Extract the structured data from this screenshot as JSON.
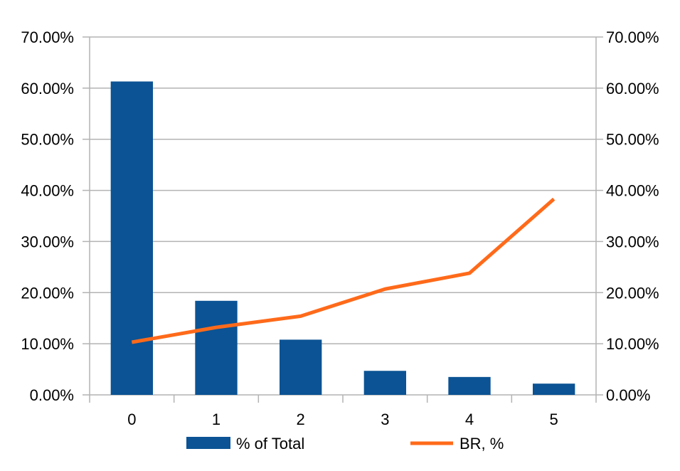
{
  "chart_data": {
    "type": "bar",
    "title": "",
    "xlabel": "",
    "ylabel": "",
    "categories": [
      "0",
      "1",
      "2",
      "3",
      "4",
      "5"
    ],
    "series": [
      {
        "name": "% of Total",
        "type": "bar",
        "axis": "left",
        "color": "#0b5394",
        "values": [
          61.3,
          18.4,
          10.8,
          4.7,
          3.5,
          2.2
        ]
      },
      {
        "name": "BR, %",
        "type": "line",
        "axis": "right",
        "color": "#ff6a1a",
        "values": [
          10.3,
          13.2,
          15.4,
          20.7,
          23.8,
          38.3
        ]
      }
    ],
    "ylim": [
      0,
      70
    ],
    "y2lim": [
      0,
      70
    ],
    "yticks": [
      "0.00%",
      "10.00%",
      "20.00%",
      "30.00%",
      "40.00%",
      "50.00%",
      "60.00%",
      "70.00%"
    ],
    "y2ticks": [
      "0.00%",
      "10.00%",
      "20.00%",
      "30.00%",
      "40.00%",
      "50.00%",
      "60.00%",
      "70.00%"
    ],
    "grid": true,
    "legend_position": "bottom"
  }
}
